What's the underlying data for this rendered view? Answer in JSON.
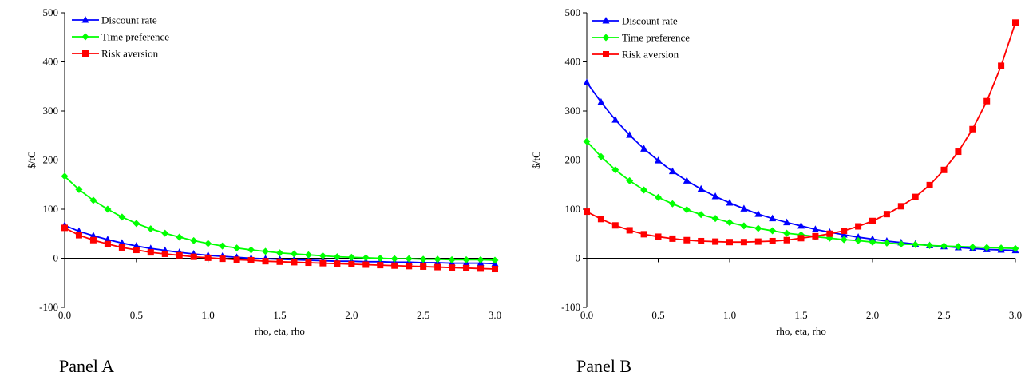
{
  "captions": {
    "panel_a": "Panel A",
    "panel_b": "Panel B"
  },
  "chart_data": [
    {
      "type": "line",
      "xlabel": "rho, eta, rho",
      "ylabel": "$/tC",
      "xlim": [
        0,
        3
      ],
      "ylim": [
        -100,
        500
      ],
      "xticks": [
        "0.0",
        "0.5",
        "1.0",
        "1.5",
        "2.0",
        "2.5",
        "3.0"
      ],
      "yticks": [
        "500",
        "400",
        "300",
        "200",
        "100",
        "0",
        "-100"
      ],
      "grid": false,
      "legend_position": "top-left",
      "x": [
        0.0,
        0.1,
        0.2,
        0.3,
        0.4,
        0.5,
        0.6,
        0.7,
        0.8,
        0.9,
        1.0,
        1.1,
        1.2,
        1.3,
        1.4,
        1.5,
        1.6,
        1.7,
        1.8,
        1.9,
        2.0,
        2.1,
        2.2,
        2.3,
        2.4,
        2.5,
        2.6,
        2.7,
        2.8,
        2.9,
        3.0
      ],
      "series": [
        {
          "name": "Discount rate",
          "color": "#0000FF",
          "marker": "triangle",
          "values": [
            67,
            55,
            46,
            38,
            31,
            25,
            20,
            16,
            12,
            9,
            6,
            4,
            2,
            0,
            -1,
            -2,
            -3,
            -4,
            -5,
            -6,
            -6,
            -7,
            -7,
            -8,
            -8,
            -9,
            -9,
            -10,
            -10,
            -10,
            -11
          ]
        },
        {
          "name": "Time preference",
          "color": "#00FF00",
          "marker": "diamond",
          "values": [
            167,
            140,
            118,
            100,
            84,
            71,
            60,
            51,
            43,
            36,
            30,
            25,
            21,
            17,
            14,
            11,
            9,
            7,
            5,
            3,
            2,
            1,
            0,
            -1,
            -1,
            -2,
            -2,
            -3,
            -3,
            -3,
            -4
          ]
        },
        {
          "name": "Risk aversion",
          "color": "#FF0000",
          "marker": "square",
          "values": [
            62,
            47,
            37,
            29,
            22,
            17,
            12,
            9,
            6,
            3,
            1,
            -1,
            -3,
            -4,
            -6,
            -7,
            -8,
            -9,
            -10,
            -11,
            -12,
            -13,
            -14,
            -15,
            -16,
            -17,
            -18,
            -19,
            -20,
            -21,
            -22
          ]
        }
      ]
    },
    {
      "type": "line",
      "xlabel": "rho, eta, rho",
      "ylabel": "$/tC",
      "xlim": [
        0,
        3
      ],
      "ylim": [
        -100,
        500
      ],
      "xticks": [
        "0.0",
        "0.5",
        "1.0",
        "1.5",
        "2.0",
        "2.5",
        "3.0"
      ],
      "yticks": [
        "500",
        "400",
        "300",
        "200",
        "100",
        "0",
        "-100"
      ],
      "grid": false,
      "legend_position": "top-left",
      "x": [
        0.0,
        0.1,
        0.2,
        0.3,
        0.4,
        0.5,
        0.6,
        0.7,
        0.8,
        0.9,
        1.0,
        1.1,
        1.2,
        1.3,
        1.4,
        1.5,
        1.6,
        1.7,
        1.8,
        1.9,
        2.0,
        2.1,
        2.2,
        2.3,
        2.4,
        2.5,
        2.6,
        2.7,
        2.8,
        2.9,
        3.0
      ],
      "series": [
        {
          "name": "Discount rate",
          "color": "#0000FF",
          "marker": "triangle",
          "values": [
            358,
            318,
            282,
            251,
            223,
            199,
            177,
            158,
            141,
            126,
            113,
            101,
            90,
            81,
            73,
            66,
            59,
            53,
            48,
            43,
            39,
            35,
            32,
            29,
            26,
            24,
            22,
            20,
            18,
            17,
            16
          ]
        },
        {
          "name": "Time preference",
          "color": "#00FF00",
          "marker": "diamond",
          "values": [
            238,
            207,
            180,
            158,
            139,
            124,
            111,
            99,
            89,
            81,
            73,
            66,
            61,
            56,
            51,
            48,
            44,
            41,
            38,
            36,
            33,
            31,
            29,
            28,
            26,
            25,
            24,
            23,
            22,
            21,
            20
          ]
        },
        {
          "name": "Risk aversion",
          "color": "#FF0000",
          "marker": "square",
          "values": [
            95,
            80,
            67,
            57,
            49,
            44,
            40,
            37,
            35,
            34,
            33,
            33,
            34,
            35,
            37,
            41,
            45,
            50,
            56,
            65,
            76,
            90,
            106,
            125,
            149,
            180,
            217,
            263,
            320,
            392,
            480
          ]
        }
      ]
    }
  ]
}
